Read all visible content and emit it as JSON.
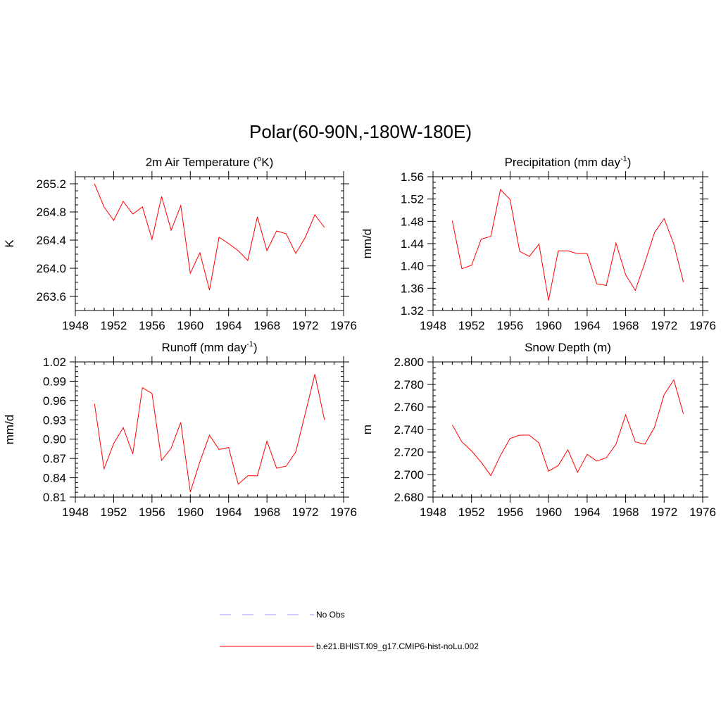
{
  "page_title": "Polar(60-90N,-180W-180E)",
  "colors": {
    "model_line": "#ff0000",
    "obs_line": "#9999ff",
    "axis": "#000000"
  },
  "chart_data": [
    {
      "type": "line",
      "title_main": "2m Air Temperature (",
      "title_sup": "o",
      "title_end": "K)",
      "ylabel": "K",
      "xlim": [
        1948,
        1976
      ],
      "ylim": [
        263.4,
        265.3
      ],
      "xticks": [
        "1948",
        "1952",
        "1956",
        "1960",
        "1964",
        "1968",
        "1972",
        "1976"
      ],
      "yticks": [
        "263.6",
        "264.0",
        "264.4",
        "264.8",
        "265.2"
      ],
      "series": [
        {
          "name": "b.e21.BHIST.f09_g17.CMIP6-hist-noLu.002",
          "x": [
            1950,
            1951,
            1952,
            1953,
            1954,
            1955,
            1956,
            1957,
            1958,
            1959,
            1960,
            1961,
            1962,
            1963,
            1964,
            1965,
            1966,
            1967,
            1968,
            1969,
            1970,
            1971,
            1972,
            1973,
            1974
          ],
          "y": [
            265.2,
            264.87,
            264.68,
            264.95,
            264.77,
            264.87,
            264.41,
            265.02,
            264.54,
            264.89,
            263.93,
            264.22,
            263.69,
            264.44,
            264.35,
            264.25,
            264.11,
            264.73,
            264.25,
            264.53,
            264.49,
            264.21,
            264.44,
            264.76,
            264.58
          ]
        }
      ]
    },
    {
      "type": "line",
      "title_main": "Precipitation (mm day",
      "title_sup": "-1",
      "title_end": ")",
      "ylabel": "mm/d",
      "xlim": [
        1948,
        1976
      ],
      "ylim": [
        1.32,
        1.56
      ],
      "xticks": [
        "1948",
        "1952",
        "1956",
        "1960",
        "1964",
        "1968",
        "1972",
        "1976"
      ],
      "yticks": [
        "1.32",
        "1.36",
        "1.40",
        "1.44",
        "1.48",
        "1.52",
        "1.56"
      ],
      "series": [
        {
          "name": "b.e21.BHIST.f09_g17.CMIP6-hist-noLu.002",
          "x": [
            1950,
            1951,
            1952,
            1953,
            1954,
            1955,
            1956,
            1957,
            1958,
            1959,
            1960,
            1961,
            1962,
            1963,
            1964,
            1965,
            1966,
            1967,
            1968,
            1969,
            1970,
            1971,
            1972,
            1973,
            1974
          ],
          "y": [
            1.481,
            1.395,
            1.401,
            1.448,
            1.453,
            1.537,
            1.519,
            1.426,
            1.417,
            1.439,
            1.338,
            1.427,
            1.427,
            1.422,
            1.422,
            1.368,
            1.365,
            1.441,
            1.384,
            1.356,
            1.406,
            1.46,
            1.485,
            1.439,
            1.371
          ]
        }
      ]
    },
    {
      "type": "line",
      "title_main": "Runoff (mm day",
      "title_sup": "-1",
      "title_end": ")",
      "ylabel": "mm/d",
      "xlim": [
        1948,
        1976
      ],
      "ylim": [
        0.81,
        1.02
      ],
      "xticks": [
        "1948",
        "1952",
        "1956",
        "1960",
        "1964",
        "1968",
        "1972",
        "1976"
      ],
      "yticks": [
        "0.81",
        "0.84",
        "0.87",
        "0.90",
        "0.93",
        "0.96",
        "0.99",
        "1.02"
      ],
      "series": [
        {
          "name": "b.e21.BHIST.f09_g17.CMIP6-hist-noLu.002",
          "x": [
            1950,
            1951,
            1952,
            1953,
            1954,
            1955,
            1956,
            1957,
            1958,
            1959,
            1960,
            1961,
            1962,
            1963,
            1964,
            1965,
            1966,
            1967,
            1968,
            1969,
            1970,
            1971,
            1972,
            1973,
            1974
          ],
          "y": [
            0.955,
            0.854,
            0.893,
            0.918,
            0.877,
            0.98,
            0.971,
            0.867,
            0.886,
            0.926,
            0.818,
            0.865,
            0.906,
            0.884,
            0.887,
            0.83,
            0.843,
            0.843,
            0.897,
            0.855,
            0.858,
            0.88,
            0.94,
            1.001,
            0.93
          ]
        }
      ]
    },
    {
      "type": "line",
      "title_main": "Snow Depth (m)",
      "title_sup": "",
      "title_end": "",
      "ylabel": "m",
      "xlim": [
        1948,
        1976
      ],
      "ylim": [
        2.68,
        2.8
      ],
      "xticks": [
        "1948",
        "1952",
        "1956",
        "1960",
        "1964",
        "1968",
        "1972",
        "1976"
      ],
      "yticks": [
        "2.680",
        "2.700",
        "2.720",
        "2.740",
        "2.760",
        "2.780",
        "2.800"
      ],
      "series": [
        {
          "name": "b.e21.BHIST.f09_g17.CMIP6-hist-noLu.002",
          "x": [
            1950,
            1951,
            1952,
            1953,
            1954,
            1955,
            1956,
            1957,
            1958,
            1959,
            1960,
            1961,
            1962,
            1963,
            1964,
            1965,
            1966,
            1967,
            1968,
            1969,
            1970,
            1971,
            1972,
            1973,
            1974
          ],
          "y": [
            2.744,
            2.729,
            2.721,
            2.711,
            2.699,
            2.717,
            2.732,
            2.735,
            2.735,
            2.728,
            2.703,
            2.708,
            2.722,
            2.702,
            2.718,
            2.712,
            2.715,
            2.727,
            2.753,
            2.729,
            2.727,
            2.742,
            2.771,
            2.784,
            2.754
          ]
        }
      ]
    }
  ],
  "legend": [
    {
      "label": "No Obs",
      "style": "dashed"
    },
    {
      "label": "b.e21.BHIST.f09_g17.CMIP6-hist-noLu.002",
      "style": "solid"
    }
  ]
}
